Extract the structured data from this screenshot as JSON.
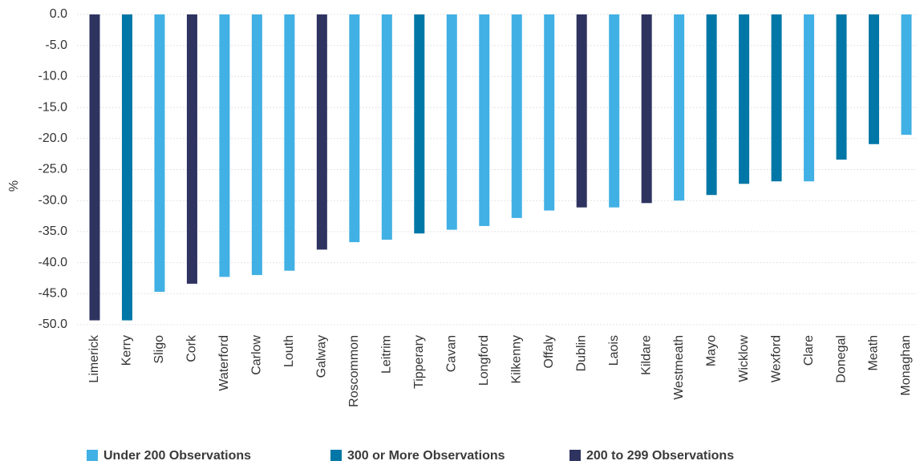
{
  "chart_data": {
    "type": "bar",
    "ylabel": "%",
    "categories": [
      "Limerick",
      "Kerry",
      "Sligo",
      "Cork",
      "Waterford",
      "Carlow",
      "Louth",
      "Galway",
      "Roscommon",
      "Leitrim",
      "Tipperary",
      "Cavan",
      "Longford",
      "Kilkenny",
      "Offaly",
      "Dublin",
      "Laois",
      "Kildare",
      "Westmeath",
      "Mayo",
      "Wicklow",
      "Wexford",
      "Clare",
      "Donegal",
      "Meath",
      "Monaghan"
    ],
    "series": [
      {
        "name": "Under 200 Observations",
        "color": "#41b0e4",
        "values": [
          null,
          null,
          -44.7,
          null,
          -42.3,
          -42.0,
          -41.3,
          null,
          -36.7,
          -36.3,
          null,
          -34.7,
          -34.1,
          -32.8,
          -31.6,
          null,
          -31.1,
          null,
          -30.0,
          null,
          null,
          null,
          -26.9,
          null,
          null,
          -19.4
        ]
      },
      {
        "name": "300 or More Observations",
        "color": "#0077a6",
        "values": [
          null,
          -49.3,
          null,
          null,
          null,
          null,
          null,
          null,
          null,
          null,
          -35.3,
          null,
          null,
          null,
          null,
          null,
          null,
          null,
          null,
          -29.1,
          -27.3,
          -26.9,
          null,
          -23.4,
          -20.9,
          null
        ]
      },
      {
        "name": "200 to 299 Observations",
        "color": "#2e3360",
        "values": [
          -49.3,
          null,
          null,
          -43.4,
          null,
          null,
          null,
          -37.9,
          null,
          null,
          null,
          null,
          null,
          null,
          null,
          -31.1,
          null,
          -30.4,
          null,
          null,
          null,
          null,
          null,
          null,
          null,
          null
        ]
      }
    ],
    "ylim": [
      -50,
      0
    ],
    "yticks": [
      {
        "value": 0,
        "label": "0.0"
      },
      {
        "value": -5,
        "label": "-5.0"
      },
      {
        "value": -10,
        "label": "-10.0"
      },
      {
        "value": -15,
        "label": "-15.0"
      },
      {
        "value": -20,
        "label": "-20.0"
      },
      {
        "value": -25,
        "label": "-25.0"
      },
      {
        "value": -30,
        "label": "-30.0"
      },
      {
        "value": -35,
        "label": "-35.0"
      },
      {
        "value": -40,
        "label": "-40.0"
      },
      {
        "value": -45,
        "label": "-45.0"
      },
      {
        "value": -50,
        "label": "-50.0"
      }
    ],
    "grid": true
  }
}
